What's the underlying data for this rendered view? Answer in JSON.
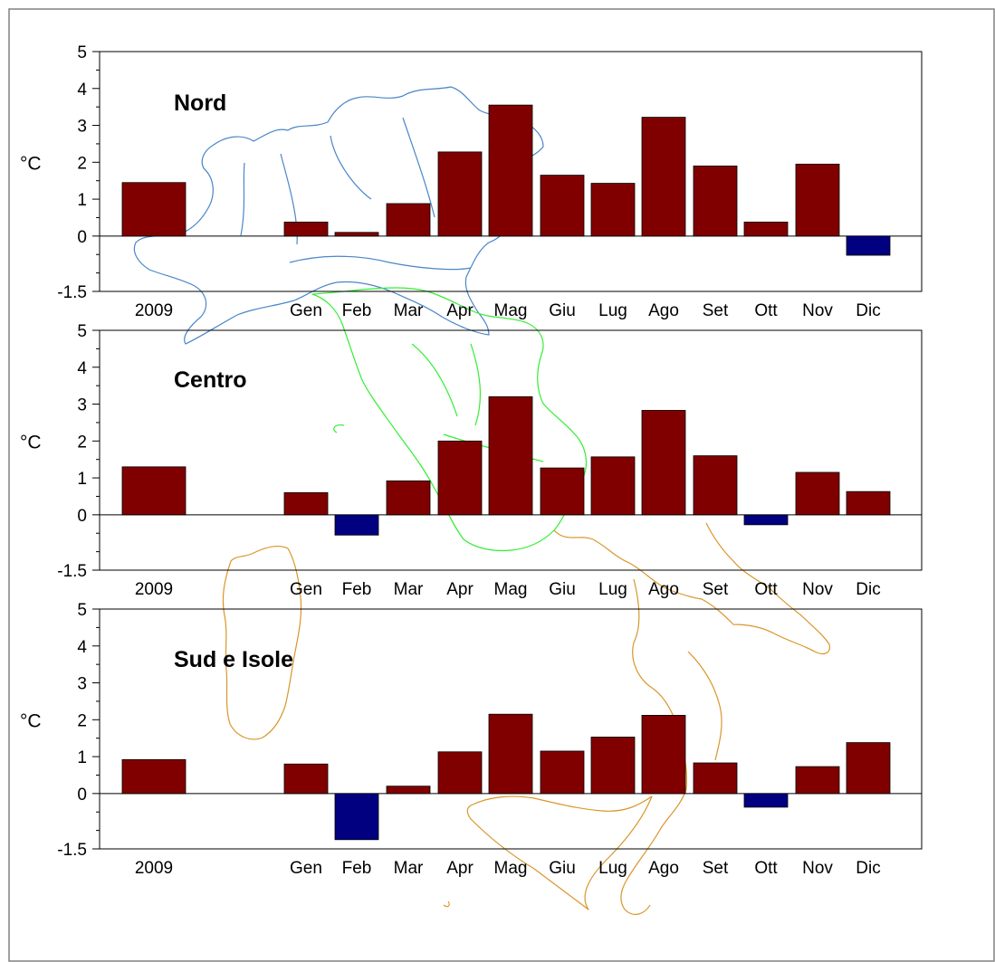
{
  "chart_data": [
    {
      "type": "bar",
      "title": "Nord",
      "ylabel": "°C",
      "categories": [
        "2009",
        "Gen",
        "Feb",
        "Mar",
        "Apr",
        "Mag",
        "Giu",
        "Lug",
        "Ago",
        "Set",
        "Ott",
        "Nov",
        "Dic"
      ],
      "values": [
        1.45,
        0.38,
        0.1,
        0.88,
        2.28,
        3.55,
        1.65,
        1.43,
        3.22,
        1.9,
        0.38,
        1.95,
        -0.52
      ],
      "ylim": [
        -1.5,
        5
      ],
      "yticks": [
        "-1.5",
        "0",
        "1",
        "2",
        "3",
        "4",
        "5"
      ],
      "grid": false
    },
    {
      "type": "bar",
      "title": "Centro",
      "ylabel": "°C",
      "categories": [
        "2009",
        "Gen",
        "Feb",
        "Mar",
        "Apr",
        "Mag",
        "Giu",
        "Lug",
        "Ago",
        "Set",
        "Ott",
        "Nov",
        "Dic"
      ],
      "values": [
        1.3,
        0.6,
        -0.55,
        0.92,
        2.0,
        3.2,
        1.27,
        1.57,
        2.83,
        1.6,
        -0.27,
        1.15,
        0.63
      ],
      "ylim": [
        -1.5,
        5
      ],
      "yticks": [
        "-1.5",
        "0",
        "1",
        "2",
        "3",
        "4",
        "5"
      ],
      "grid": false
    },
    {
      "type": "bar",
      "title": "Sud e Isole",
      "ylabel": "°C",
      "categories": [
        "2009",
        "Gen",
        "Feb",
        "Mar",
        "Apr",
        "Mag",
        "Giu",
        "Lug",
        "Ago",
        "Set",
        "Ott",
        "Nov",
        "Dic"
      ],
      "values": [
        0.92,
        0.8,
        -1.25,
        0.2,
        1.13,
        2.15,
        1.15,
        1.53,
        2.12,
        0.83,
        -0.37,
        0.73,
        1.38
      ],
      "ylim": [
        -1.5,
        5
      ],
      "yticks": [
        "-1.5",
        "0",
        "1",
        "2",
        "3",
        "4",
        "5"
      ],
      "grid": false
    }
  ],
  "colors": {
    "positive": "#800000",
    "negative": "#000080",
    "axis": "#000000",
    "frame": "#808080",
    "map_nord": "#4a86c8",
    "map_centro": "#33ee33",
    "map_sud": "#d9962a"
  }
}
